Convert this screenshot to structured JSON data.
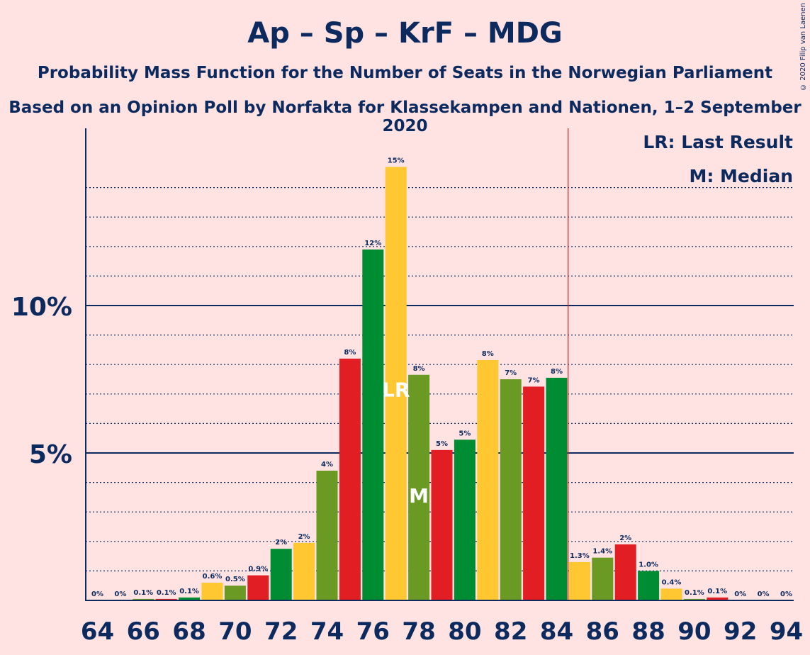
{
  "title": "Ap – Sp – KrF – MDG",
  "subtitle": "Probability Mass Function for the Number of Seats in the Norwegian Parliament",
  "subtitle2": "Based on an Opinion Poll by Norfakta for Klassekampen and Nationen, 1–2 September 2020",
  "copyright": "© 2020 Filip van Laenen",
  "legend": {
    "lr": "LR: Last Result",
    "m": "M: Median"
  },
  "markers": {
    "lr_label": "LR",
    "m_label": "M",
    "last_result": 77,
    "median": 78,
    "majority_line": 84.5
  },
  "colors": {
    "green": "#008C32",
    "olive": "#6B9A24",
    "yellow": "#FFC832",
    "red": "#E01E24",
    "axis": "#0C2A5E",
    "majority": "#E01E24",
    "background": "#FFE2E2"
  },
  "chart_data": {
    "type": "bar",
    "x_ticks": [
      "64",
      "66",
      "68",
      "70",
      "72",
      "74",
      "76",
      "78",
      "80",
      "82",
      "84",
      "86",
      "88",
      "90",
      "92",
      "94"
    ],
    "y_ticks": [
      "5%",
      "10%"
    ],
    "y_tick_values": [
      5,
      10
    ],
    "ylim": [
      0,
      16
    ],
    "x": [
      64,
      65,
      66,
      67,
      68,
      69,
      70,
      71,
      72,
      73,
      74,
      75,
      76,
      77,
      78,
      79,
      80,
      81,
      82,
      83,
      84,
      85,
      86,
      87,
      88,
      89,
      90,
      91,
      92,
      93,
      94
    ],
    "values": [
      0,
      0,
      0.05,
      0.05,
      0.1,
      0.6,
      0.5,
      0.85,
      1.75,
      1.95,
      4.4,
      8.2,
      11.9,
      14.7,
      7.65,
      5.1,
      5.45,
      8.15,
      7.5,
      7.25,
      7.55,
      1.3,
      1.45,
      1.9,
      1.0,
      0.4,
      0.05,
      0.1,
      0,
      0,
      0
    ],
    "labels": [
      "0%",
      "0%",
      "0.1%",
      "0.1%",
      "0.1%",
      "0.6%",
      "0.5%",
      "0.9%",
      "2%",
      "2%",
      "4%",
      "8%",
      "12%",
      "15%",
      "8%",
      "5%",
      "5%",
      "8%",
      "7%",
      "7%",
      "8%",
      "1.3%",
      "1.4%",
      "2%",
      "1.0%",
      "0.4%",
      "0.1%",
      "0.1%",
      "0%",
      "0%",
      "0%"
    ],
    "bar_colors": [
      "green",
      "yellow",
      "olive",
      "red",
      "green",
      "yellow",
      "olive",
      "red",
      "green",
      "yellow",
      "olive",
      "red",
      "green",
      "yellow",
      "olive",
      "red",
      "green",
      "yellow",
      "olive",
      "red",
      "green",
      "yellow",
      "olive",
      "red",
      "green",
      "yellow",
      "olive",
      "red",
      "green",
      "yellow",
      "olive"
    ]
  }
}
